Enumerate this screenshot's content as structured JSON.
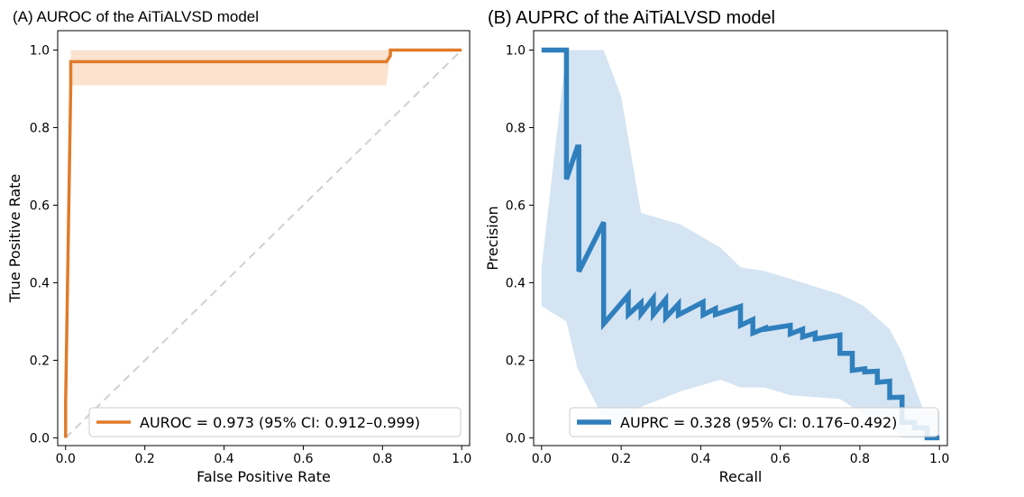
{
  "chart_data": [
    {
      "panel": "A",
      "type": "line",
      "title": "(A) AUROC of the AiTiALVSD model",
      "xlabel": "False Positive Rate",
      "ylabel": "True Positive Rate",
      "xlim": [
        -0.02,
        1.02
      ],
      "ylim": [
        -0.02,
        1.05
      ],
      "xticks": [
        "0.0",
        "0.2",
        "0.4",
        "0.6",
        "0.8",
        "1.0"
      ],
      "yticks": [
        "0.0",
        "0.2",
        "0.4",
        "0.6",
        "0.8",
        "1.0"
      ],
      "series": [
        {
          "name": "AUROC = 0.973 (95% CI: 0.912–0.999)",
          "color": "#e07b2a",
          "x": [
            0.0,
            0.0,
            0.013,
            0.013,
            0.81,
            0.82,
            0.82,
            1.0
          ],
          "y": [
            0.0,
            0.091,
            0.909,
            0.97,
            0.97,
            0.985,
            1.0,
            1.0
          ]
        }
      ],
      "ci_band": {
        "color": "#fbe3cf",
        "x": [
          0.013,
          0.81,
          0.82,
          1.0
        ],
        "lower": [
          0.909,
          0.909,
          1.0,
          1.0
        ],
        "upper": [
          1.0,
          1.0,
          1.0,
          1.0
        ]
      },
      "reference_line": {
        "x": [
          0,
          1
        ],
        "y": [
          0,
          1
        ],
        "color": "#d0d0d0"
      },
      "legend_loc": "lower-right"
    },
    {
      "panel": "B",
      "type": "line",
      "title": "(B) AUPRC of the AiTiALVSD model",
      "xlabel": "Recall",
      "ylabel": "Precision",
      "xlim": [
        -0.02,
        1.02
      ],
      "ylim": [
        -0.02,
        1.05
      ],
      "xticks": [
        "0.0",
        "0.2",
        "0.4",
        "0.6",
        "0.8",
        "1.0"
      ],
      "yticks": [
        "0.0",
        "0.2",
        "0.4",
        "0.6",
        "0.8",
        "1.0"
      ],
      "series": [
        {
          "name": "AUPRC = 0.328 (95% CI: 0.176–0.492)",
          "color": "#2f7fbd",
          "x": [
            0.0,
            0.0625,
            0.0625,
            0.09,
            0.09,
            0.0937,
            0.0937,
            0.156,
            0.156,
            0.218,
            0.218,
            0.25,
            0.25,
            0.281,
            0.281,
            0.312,
            0.312,
            0.312,
            0.344,
            0.344,
            0.406,
            0.406,
            0.437,
            0.437,
            0.5,
            0.5,
            0.5,
            0.531,
            0.531,
            0.5625,
            0.5625,
            0.625,
            0.625,
            0.656,
            0.656,
            0.6875,
            0.6875,
            0.75,
            0.75,
            0.781,
            0.781,
            0.8125,
            0.8125,
            0.844,
            0.844,
            0.875,
            0.875,
            0.906,
            0.906,
            0.937,
            0.937,
            0.969,
            0.969,
            1.0
          ],
          "y": [
            1.0,
            1.0,
            0.667,
            0.75,
            0.75,
            0.75,
            0.429,
            0.556,
            0.294,
            0.368,
            0.318,
            0.348,
            0.32,
            0.36,
            0.318,
            0.357,
            0.345,
            0.31,
            0.345,
            0.317,
            0.35,
            0.317,
            0.333,
            0.318,
            0.339,
            0.316,
            0.29,
            0.305,
            0.27,
            0.283,
            0.28,
            0.29,
            0.268,
            0.28,
            0.26,
            0.27,
            0.255,
            0.265,
            0.218,
            0.218,
            0.174,
            0.178,
            0.17,
            0.172,
            0.143,
            0.146,
            0.104,
            0.105,
            0.04,
            0.04,
            0.026,
            0.026,
            0.0,
            0.0
          ]
        }
      ],
      "ci_band": {
        "color": "#d4e4f2",
        "x": [
          0.0,
          0.0625,
          0.09,
          0.156,
          0.2,
          0.25,
          0.35,
          0.45,
          0.5,
          0.56,
          0.625,
          0.75,
          0.81,
          0.875,
          0.906,
          0.96,
          1.0
        ],
        "lower": [
          0.34,
          0.3,
          0.18,
          0.05,
          0.03,
          0.08,
          0.12,
          0.15,
          0.13,
          0.13,
          0.11,
          0.1,
          0.06,
          0.03,
          0.0,
          0.0,
          0.0
        ],
        "upper": [
          0.44,
          1.0,
          1.0,
          1.0,
          0.88,
          0.58,
          0.55,
          0.49,
          0.44,
          0.43,
          0.41,
          0.37,
          0.34,
          0.28,
          0.22,
          0.07,
          0.07
        ]
      },
      "legend_loc": "lower-right"
    }
  ]
}
